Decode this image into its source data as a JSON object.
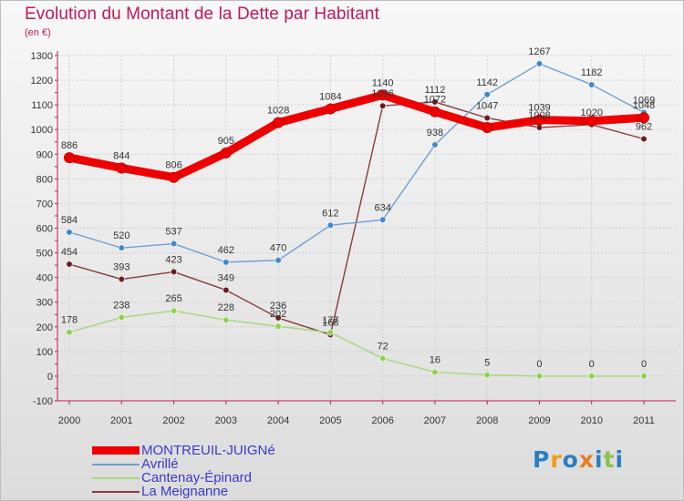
{
  "title": "Evolution du Montant de la Dette par Habitant",
  "unit": "(en €)",
  "brand": {
    "letters": [
      {
        "ch": "P",
        "color": "#2a7fc1"
      },
      {
        "ch": "r",
        "color": "#f39c12"
      },
      {
        "ch": "o",
        "color": "#2a7fc1"
      },
      {
        "ch": "x",
        "color": "#e67e22"
      },
      {
        "ch": "i",
        "color": "#2a7fc1"
      },
      {
        "ch": "t",
        "color": "#8bc34a"
      },
      {
        "ch": "i",
        "color": "#2a7fc1"
      }
    ]
  },
  "chart_data": {
    "type": "line",
    "x": [
      "2000",
      "2001",
      "2002",
      "2003",
      "2004",
      "2005",
      "2006",
      "2007",
      "2008",
      "2009",
      "2010",
      "2011"
    ],
    "ylim": [
      -100,
      1300
    ],
    "yticks": [
      -100,
      0,
      100,
      200,
      300,
      400,
      500,
      600,
      700,
      800,
      900,
      1000,
      1100,
      1200,
      1300
    ],
    "grid": true,
    "legend": "bottom-left",
    "series": [
      {
        "name": "MONTREUIL-JUIGNé",
        "color": "#ee0000",
        "marker_fill": "#ee0000",
        "values": [
          886,
          844,
          806,
          905,
          1028,
          1084,
          1140,
          1072,
          1008,
          1039,
          1035,
          1048
        ],
        "labels": [
          true,
          true,
          true,
          true,
          true,
          true,
          true,
          true,
          false,
          true,
          false,
          true
        ]
      },
      {
        "name": "Avrillé",
        "color": "#6f9fd0",
        "marker_fill": "#3f88cf",
        "values": [
          584,
          520,
          537,
          462,
          470,
          612,
          634,
          938,
          1142,
          1267,
          1182,
          1069
        ],
        "labels": [
          true,
          true,
          true,
          true,
          true,
          true,
          true,
          true,
          true,
          true,
          true,
          true
        ]
      },
      {
        "name": "Cantenay-Épinard",
        "color": "#a6d77a",
        "marker_fill": "#8fd14f",
        "values": [
          178,
          238,
          265,
          228,
          202,
          177,
          72,
          16,
          5,
          0,
          0,
          0
        ],
        "labels": [
          true,
          true,
          true,
          true,
          true,
          true,
          true,
          true,
          true,
          true,
          true,
          true
        ]
      },
      {
        "name": "La Meignanne",
        "color": "#8a3a3a",
        "marker_fill": "#6b1d1d",
        "values": [
          454,
          393,
          423,
          349,
          236,
          168,
          1096,
          1112,
          1047,
          1008,
          1020,
          962
        ],
        "labels": [
          true,
          true,
          true,
          true,
          true,
          true,
          true,
          true,
          true,
          true,
          true,
          true
        ]
      }
    ]
  }
}
